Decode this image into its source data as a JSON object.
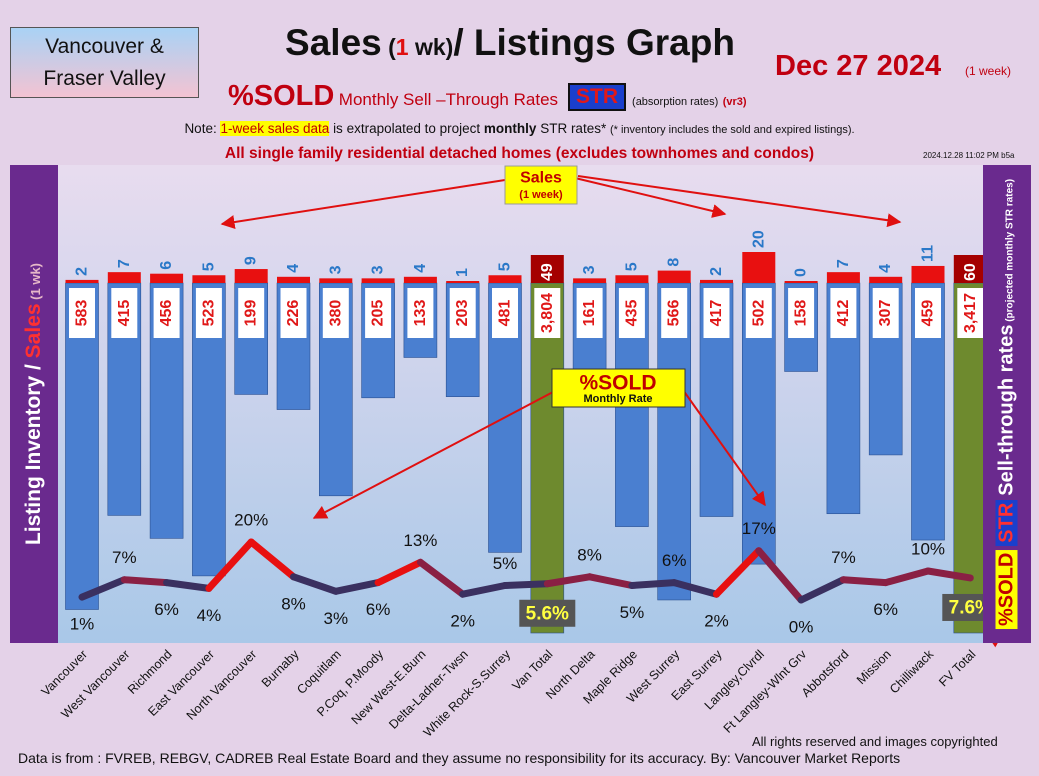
{
  "header": {
    "region_line1": "Vancouver &",
    "region_line2": "Fraser Valley",
    "title_a": "Sales",
    "title_paren_open": " (",
    "title_one": "1",
    "title_wk": " wk)",
    "title_b": "/ Listings Graph",
    "date": "Dec 27  2024",
    "date_sub": "(1 week)",
    "pct_sold": "%SOLD",
    "str_text": "Monthly Sell –Through Rates",
    "str_badge": "STR",
    "absorption": "(absorption rates)",
    "version": "(vr3)",
    "note_prefix": "Note:",
    "note_highlight": "1-week sales data",
    "note_mid": "is extrapolated to project",
    "note_bold": "monthly",
    "note_end": "STR rates*",
    "note_small": "(* inventory includes the sold and expired listings).",
    "homes_line": "All single family residential detached homes (excludes townhomes and condos)",
    "timestamp": "2024.12.28 11:02 PM b5a"
  },
  "panels": {
    "left_a": "Listing Inventory",
    "left_slash": " / ",
    "left_b": "Sales",
    "left_c": " (1 wk)",
    "right_pct": "%SOLD",
    "right_str": "STR",
    "right_b": "Sell-through rates",
    "right_c": " (projected monthly STR rates)"
  },
  "annotations": {
    "sales_callout_1": "Sales",
    "sales_callout_2": "(1 week)",
    "pct_callout_1": "%SOLD",
    "pct_callout_2": "Monthly Rate"
  },
  "footer": {
    "source": "Data is from : FVREB, REBGV, CADREB Real Estate Board and they assume no responsibility for its accuracy. By: Vancouver Market Reports",
    "rights": "All rights reserved and  images copyrighted"
  },
  "colors": {
    "listing_bar": "#4a7fd0",
    "total_bar": "#6e8a2e",
    "sales_bar": "#e81010",
    "total_sales_bar": "#a50000",
    "sales_label": "#2a78c8",
    "listing_label": "#e01818",
    "str_line": "#e81010",
    "str_line_low": "#3a3060",
    "panel": "#6a2a8e"
  },
  "chart_data": {
    "type": "bar",
    "categories": [
      "Vancouver",
      "West Vancouver",
      "Richmond",
      "East Vancouver",
      "North Vancouver",
      "Burnaby",
      "Coquitlam",
      "P.Coq, P.Moody",
      "New West-E.Burn",
      "Delta-Ladner-Twsn",
      "White Rock-S.Surrey",
      "Van Total",
      "North Delta",
      "Maple Ridge",
      "West Surrey",
      "East Surrey",
      "Langley,Clvrdl",
      "Ft Langley-Wlnt Grv",
      "Abbotsford",
      "Mission",
      "Chilliwack",
      "FV Total"
    ],
    "series": [
      {
        "name": "Sales",
        "values": [
          2,
          7,
          6,
          5,
          9,
          4,
          3,
          3,
          4,
          1,
          5,
          49,
          3,
          5,
          8,
          2,
          20,
          0,
          7,
          4,
          11,
          60
        ]
      },
      {
        "name": "Listing Inventory",
        "values": [
          583,
          415,
          456,
          523,
          199,
          226,
          380,
          205,
          133,
          203,
          481,
          3804,
          161,
          435,
          566,
          417,
          502,
          158,
          412,
          307,
          459,
          3417
        ]
      },
      {
        "name": "%SOLD",
        "values": [
          1,
          7,
          6,
          4,
          20,
          8,
          3,
          6,
          13,
          2,
          5,
          5.6,
          8,
          5,
          6,
          2,
          17,
          0,
          7,
          6,
          10,
          7.6
        ]
      }
    ],
    "sales_labels": [
      "2",
      "7",
      "6",
      "5",
      "9",
      "4",
      "3",
      "3",
      "4",
      "1",
      "5",
      "49",
      "3",
      "5",
      "8",
      "2",
      "20",
      "0",
      "7",
      "4",
      "11",
      "60"
    ],
    "listing_labels": [
      "583",
      "415",
      "456",
      "523",
      "199",
      "226",
      "380",
      "205",
      "133",
      "203",
      "481",
      "3,804",
      "161",
      "435",
      "566",
      "417",
      "502",
      "158",
      "412",
      "307",
      "459",
      "3,417"
    ],
    "pct_labels": [
      "1%",
      "7%",
      "6%",
      "4%",
      "20%",
      "8%",
      "3%",
      "6%",
      "13%",
      "2%",
      "5%",
      "5.6%",
      "8%",
      "5%",
      "6%",
      "2%",
      "17%",
      "0%",
      "7%",
      "6%",
      "10%",
      "7.6%"
    ],
    "totals_index": [
      11,
      21
    ],
    "legend": "none",
    "grid": false
  }
}
